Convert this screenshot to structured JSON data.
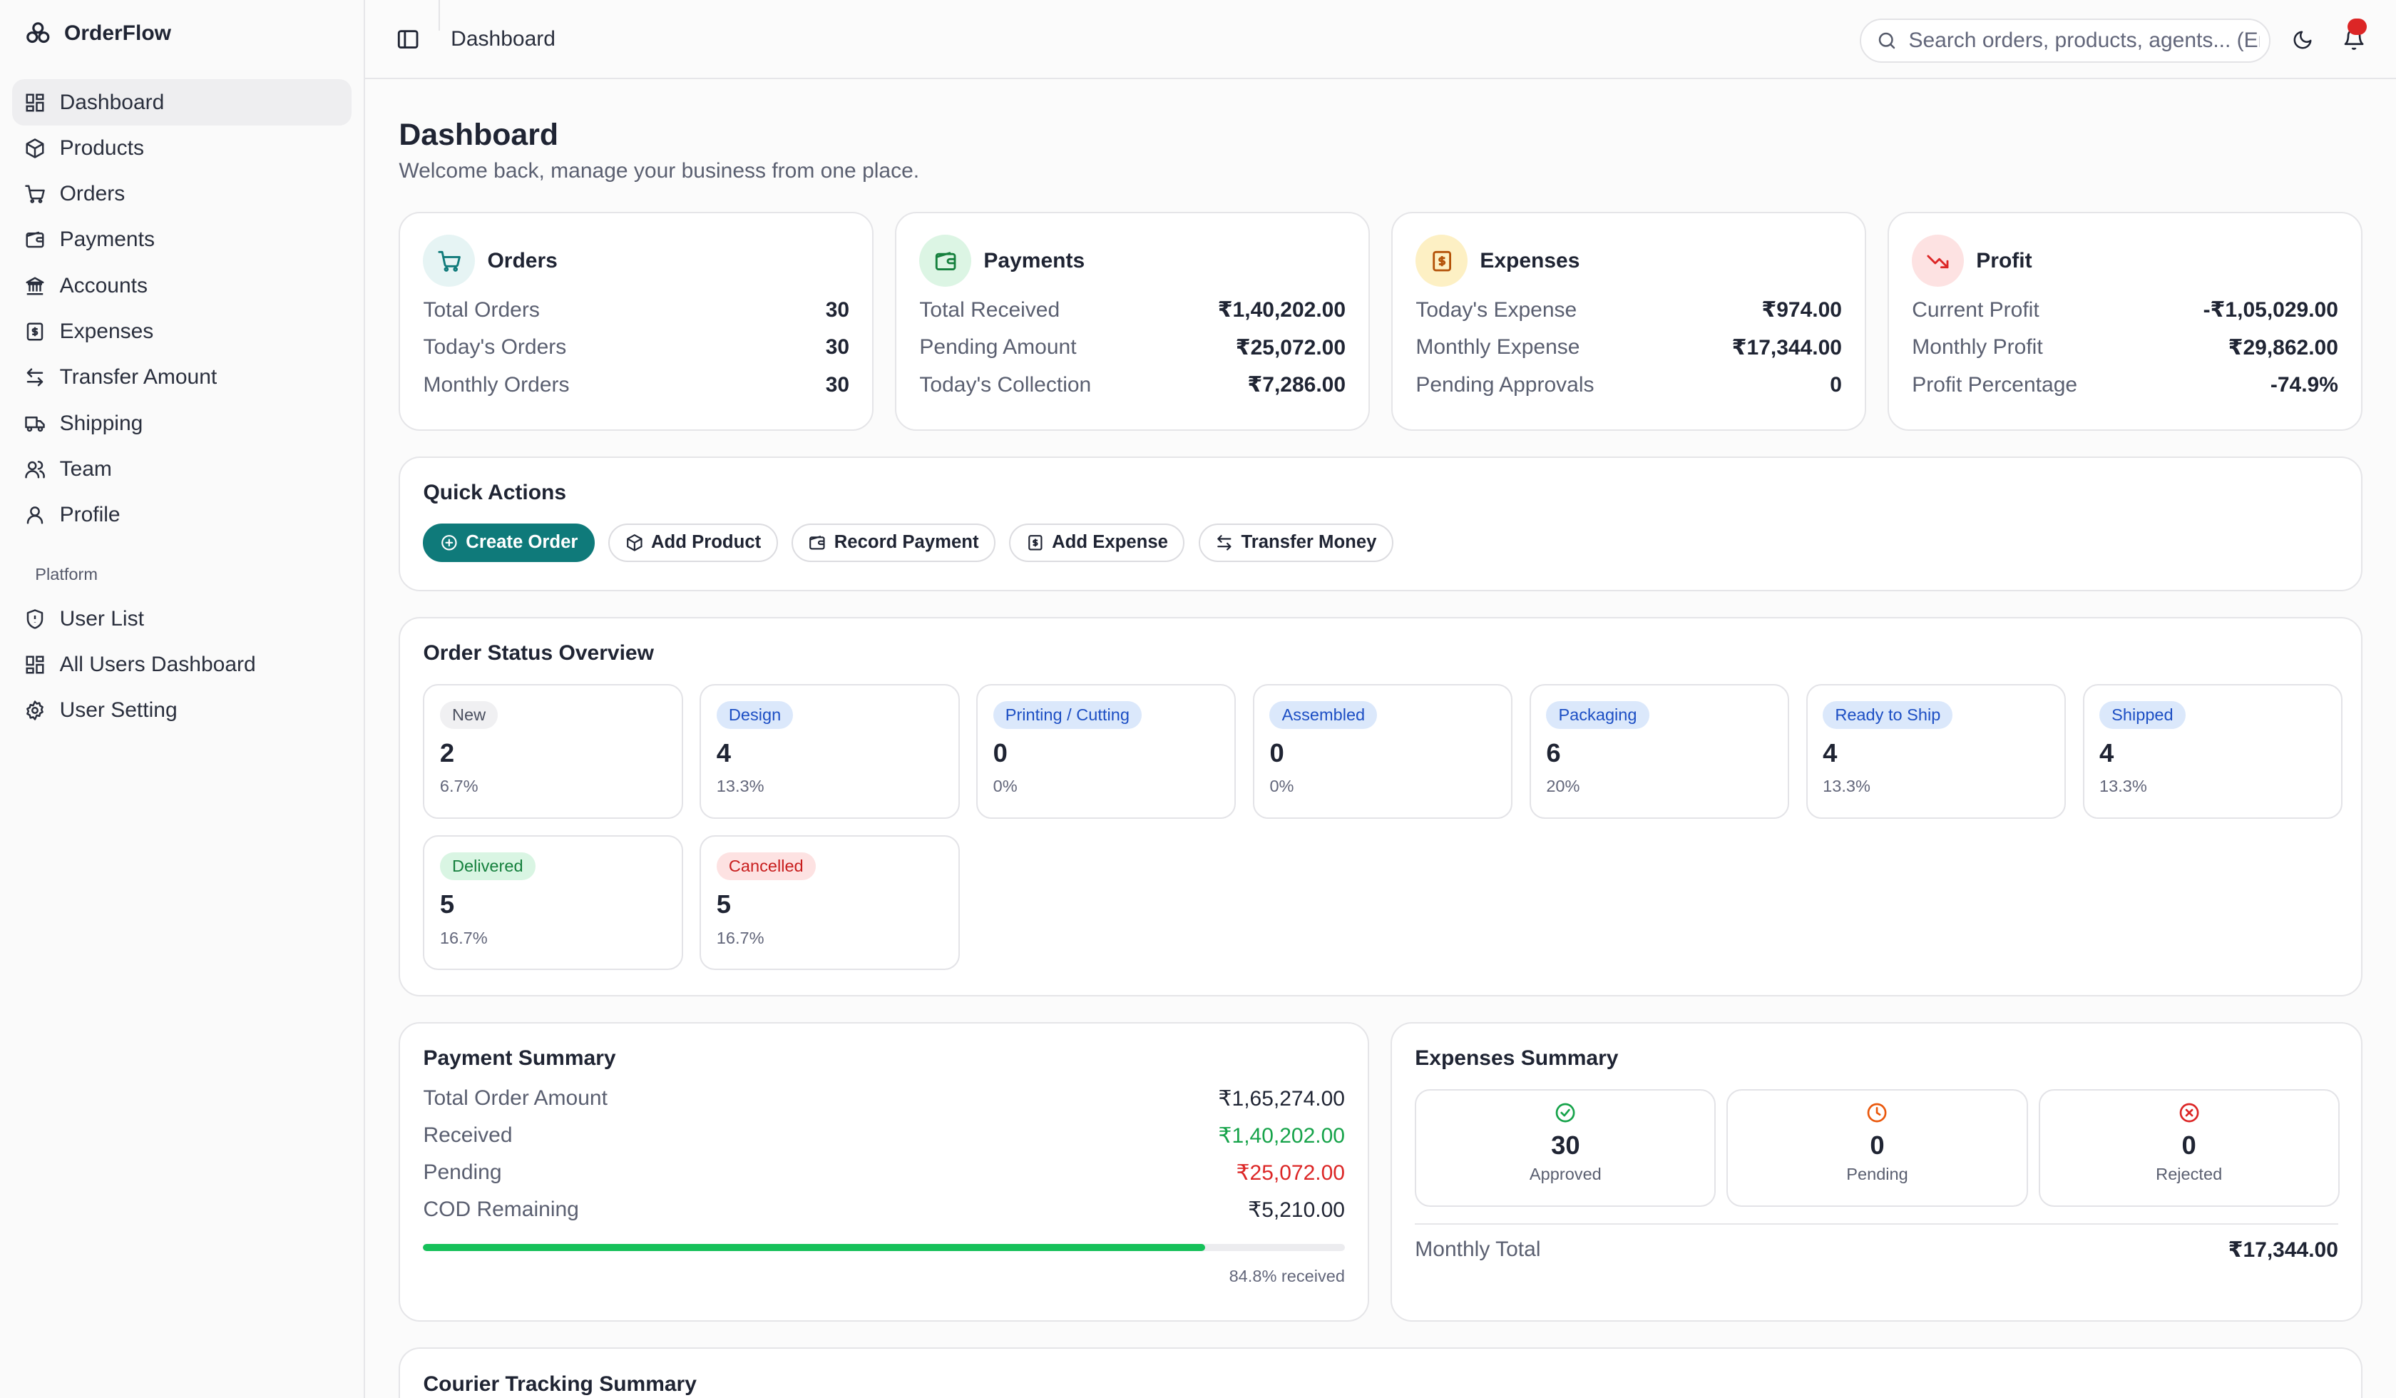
{
  "app": {
    "name": "OrderFlow"
  },
  "sidebar": {
    "items": [
      {
        "label": "Dashboard",
        "icon": "layout-dashboard-icon"
      },
      {
        "label": "Products",
        "icon": "package-icon"
      },
      {
        "label": "Orders",
        "icon": "shopping-cart-icon"
      },
      {
        "label": "Payments",
        "icon": "wallet-icon"
      },
      {
        "label": "Accounts",
        "icon": "bank-icon"
      },
      {
        "label": "Expenses",
        "icon": "receipt-icon"
      },
      {
        "label": "Transfer Amount",
        "icon": "arrows-left-right-icon"
      },
      {
        "label": "Shipping",
        "icon": "truck-icon"
      },
      {
        "label": "Team",
        "icon": "users-icon"
      },
      {
        "label": "Profile",
        "icon": "user-icon"
      }
    ],
    "platform_label": "Platform",
    "platform_items": [
      {
        "label": "User List",
        "icon": "shield-icon"
      },
      {
        "label": "All Users Dashboard",
        "icon": "layout-dashboard-icon"
      },
      {
        "label": "User Setting",
        "icon": "gear-icon"
      }
    ]
  },
  "topbar": {
    "breadcrumb": "Dashboard",
    "search_placeholder": "Search orders, products, agents... (Enter)"
  },
  "page": {
    "title": "Dashboard",
    "subtitle": "Welcome back, manage your business from one place."
  },
  "stats": [
    {
      "title": "Orders",
      "icon": "shopping-cart-icon",
      "icon_bg": "#e6f4f4",
      "icon_color": "#0f7a7a",
      "rows": [
        {
          "label": "Total Orders",
          "value": "30"
        },
        {
          "label": "Today's Orders",
          "value": "30"
        },
        {
          "label": "Monthly Orders",
          "value": "30"
        }
      ]
    },
    {
      "title": "Payments",
      "icon": "wallet-icon",
      "icon_bg": "#dcf5e4",
      "icon_color": "#15803d",
      "rows": [
        {
          "label": "Total Received",
          "value": "₹1,40,202.00"
        },
        {
          "label": "Pending Amount",
          "value": "₹25,072.00"
        },
        {
          "label": "Today's Collection",
          "value": "₹7,286.00"
        }
      ]
    },
    {
      "title": "Expenses",
      "icon": "receipt-icon",
      "icon_bg": "#fdf0c4",
      "icon_color": "#b45309",
      "rows": [
        {
          "label": "Today's Expense",
          "value": "₹974.00"
        },
        {
          "label": "Monthly Expense",
          "value": "₹17,344.00"
        },
        {
          "label": "Pending Approvals",
          "value": "0"
        }
      ]
    },
    {
      "title": "Profit",
      "icon": "trending-down-icon",
      "icon_bg": "#fde2e2",
      "icon_color": "#dc2626",
      "rows": [
        {
          "label": "Current Profit",
          "value": "-₹1,05,029.00"
        },
        {
          "label": "Monthly Profit",
          "value": "₹29,862.00"
        },
        {
          "label": "Profit Percentage",
          "value": "-74.9%"
        }
      ]
    }
  ],
  "quick_actions": {
    "title": "Quick Actions",
    "buttons": [
      {
        "label": "Create Order",
        "icon": "plus-circle-icon",
        "primary": true
      },
      {
        "label": "Add Product",
        "icon": "package-icon"
      },
      {
        "label": "Record Payment",
        "icon": "wallet-icon"
      },
      {
        "label": "Add Expense",
        "icon": "receipt-icon"
      },
      {
        "label": "Transfer Money",
        "icon": "arrows-left-right-icon"
      }
    ]
  },
  "order_status": {
    "title": "Order Status Overview",
    "items": [
      {
        "label": "New",
        "count": "2",
        "pct": "6.7%",
        "bg": "#f0f0f2",
        "fg": "#4b5060"
      },
      {
        "label": "Design",
        "count": "4",
        "pct": "13.3%",
        "bg": "#dbe8fb",
        "fg": "#1d4fc4"
      },
      {
        "label": "Printing / Cutting",
        "count": "0",
        "pct": "0%",
        "bg": "#dbe8fb",
        "fg": "#1d4fc4"
      },
      {
        "label": "Assembled",
        "count": "0",
        "pct": "0%",
        "bg": "#dbe8fb",
        "fg": "#1d4fc4"
      },
      {
        "label": "Packaging",
        "count": "6",
        "pct": "20%",
        "bg": "#dbe8fb",
        "fg": "#1d4fc4"
      },
      {
        "label": "Ready to Ship",
        "count": "4",
        "pct": "13.3%",
        "bg": "#dbe8fb",
        "fg": "#1d4fc4"
      },
      {
        "label": "Shipped",
        "count": "4",
        "pct": "13.3%",
        "bg": "#dbe8fb",
        "fg": "#1d4fc4"
      },
      {
        "label": "Delivered",
        "count": "5",
        "pct": "16.7%",
        "bg": "#d9f5e3",
        "fg": "#15803d"
      },
      {
        "label": "Cancelled",
        "count": "5",
        "pct": "16.7%",
        "bg": "#fde2e2",
        "fg": "#c81e1e"
      }
    ]
  },
  "payment_summary": {
    "title": "Payment Summary",
    "rows": [
      {
        "label": "Total Order Amount",
        "value": "₹1,65,274.00",
        "color": "#1f2433"
      },
      {
        "label": "Received",
        "value": "₹1,40,202.00",
        "color": "#16a34a"
      },
      {
        "label": "Pending",
        "value": "₹25,072.00",
        "color": "#dc2626"
      },
      {
        "label": "COD Remaining",
        "value": "₹5,210.00",
        "color": "#1f2433"
      }
    ],
    "received_fraction": 0.848,
    "received_caption": "84.8% received"
  },
  "expenses_summary": {
    "title": "Expenses Summary",
    "cards": [
      {
        "count": "30",
        "label": "Approved",
        "icon": "check-circle-icon",
        "color": "#16a34a"
      },
      {
        "count": "0",
        "label": "Pending",
        "icon": "clock-icon",
        "color": "#ea580c"
      },
      {
        "count": "0",
        "label": "Rejected",
        "icon": "x-circle-icon",
        "color": "#dc2626"
      }
    ],
    "total_label": "Monthly Total",
    "total_value": "₹17,344.00"
  },
  "courier": {
    "title": "Courier Tracking Summary"
  }
}
